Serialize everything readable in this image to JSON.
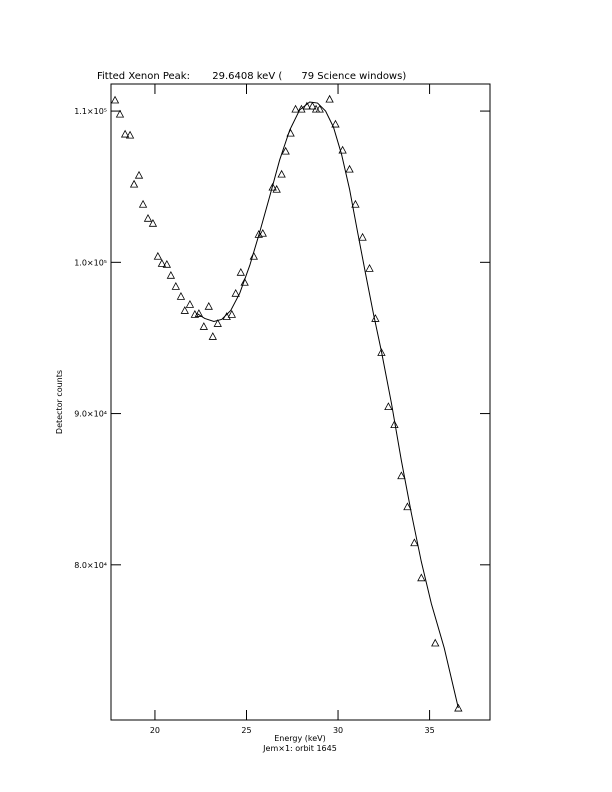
{
  "chart_data": {
    "type": "scatter",
    "title": "Fitted Xenon Peak:       29.6408 keV (      79 Science windows)",
    "x_label": "Energy (keV)",
    "x_sublabel": "Jem×1: orbit 1645",
    "y_label": "Detector counts",
    "xlim": [
      17.6,
      38.3
    ],
    "ylim": [
      69740,
      111790
    ],
    "xticks": [
      20,
      25,
      30,
      35
    ],
    "yticks": [
      {
        "value": 80000,
        "label": "8.0×10⁴"
      },
      {
        "value": 90000,
        "label": "9.0×10⁴"
      },
      {
        "value": 100000,
        "label": "1.0×10⁵"
      },
      {
        "value": 110000,
        "label": "1.1×10⁵"
      }
    ],
    "color": "#000000",
    "series": [
      {
        "marker": "triangle",
        "x": [
          17.82,
          18.09,
          18.37,
          18.64,
          18.86,
          19.13,
          19.35,
          19.62,
          19.89,
          20.16,
          20.38,
          20.65,
          20.87,
          21.14,
          21.42,
          21.63,
          21.91,
          22.18,
          22.4,
          22.67,
          22.94,
          23.16,
          23.43,
          23.92,
          24.2,
          24.41,
          24.69,
          24.9,
          25.4,
          25.67,
          25.89,
          26.43,
          26.65,
          26.92,
          27.14,
          27.41,
          27.68,
          28.0,
          28.3,
          28.6,
          28.8,
          29.0,
          29.54,
          29.86,
          30.25,
          30.63,
          30.95,
          31.34,
          31.72,
          32.04,
          32.37,
          32.75,
          33.08,
          33.46,
          33.79,
          34.17,
          34.55,
          35.31,
          36.57
        ],
        "values": [
          110730,
          109800,
          108480,
          108410,
          105170,
          105760,
          103840,
          102910,
          102580,
          100400,
          99930,
          99870,
          99140,
          98410,
          97750,
          96820,
          97220,
          96560,
          96620,
          95760,
          97090,
          95100,
          95960,
          96420,
          96560,
          97950,
          99340,
          98680,
          100400,
          101850,
          101920,
          104970,
          104830,
          105830,
          107350,
          108540,
          110130,
          110130,
          110330,
          110330,
          110130,
          110130,
          110790,
          109140,
          107420,
          106160,
          103840,
          101660,
          99600,
          96290,
          94040,
          90460,
          89270,
          85890,
          83840,
          81460,
          79140,
          74830,
          70530
        ]
      },
      {
        "marker": "line",
        "x": [
          22.29,
          22.72,
          23.22,
          23.65,
          24.14,
          24.63,
          25.18,
          25.72,
          26.27,
          26.81,
          27.36,
          27.9,
          28.45,
          28.88,
          29.32,
          29.75,
          30.19,
          30.63,
          31.06,
          31.5,
          31.93,
          32.37,
          32.92,
          33.46,
          34.01,
          34.55,
          35.1,
          35.8,
          36.57
        ],
        "values": [
          96620,
          96290,
          96090,
          96230,
          96820,
          97950,
          99800,
          101990,
          104370,
          106760,
          108740,
          110070,
          110600,
          110530,
          110000,
          108940,
          107150,
          104830,
          102050,
          99270,
          96620,
          94110,
          90660,
          86890,
          83380,
          80200,
          77420,
          74500,
          70530
        ]
      }
    ]
  }
}
